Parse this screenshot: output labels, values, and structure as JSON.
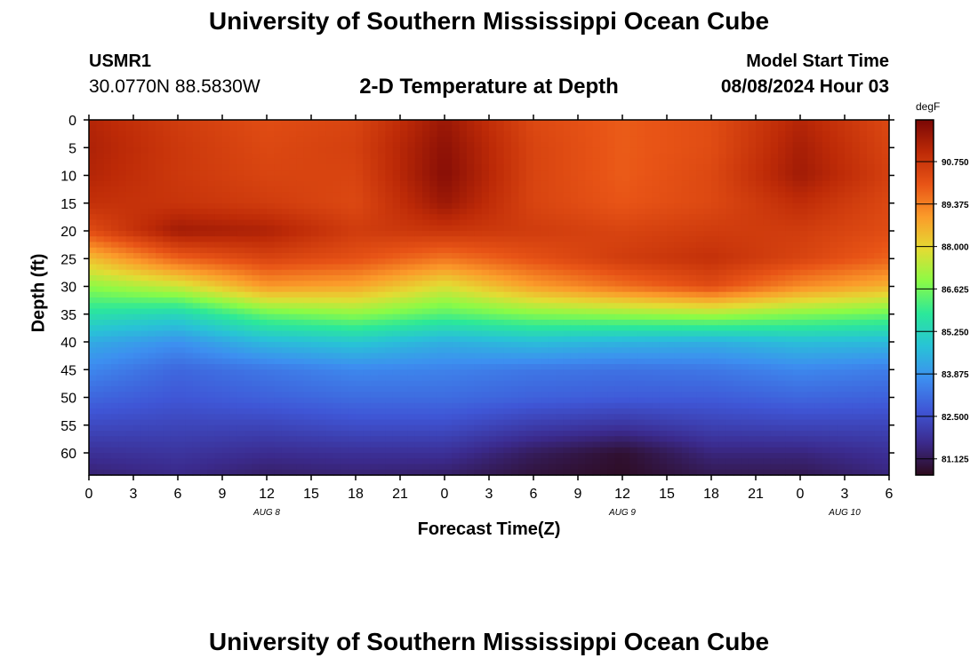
{
  "header": {
    "title": "University of Southern Mississippi Ocean Cube",
    "station_id": "USMR1",
    "location": "30.0770N  88.5830W",
    "subtitle": "2-D Temperature at Depth",
    "start_label": "Model Start Time",
    "start_value": "08/08/2024 Hour 03"
  },
  "footer": {
    "title": "University of Southern Mississippi Ocean Cube"
  },
  "chart_data": {
    "type": "heatmap",
    "title": "2-D Temperature at Depth",
    "xlabel": "Forecast Time(Z)",
    "ylabel": "Depth (ft)",
    "x_unit": "forecast hours from 08/08 00Z",
    "x_range": [
      0,
      54
    ],
    "x_ticks": [
      0,
      3,
      6,
      9,
      12,
      15,
      18,
      21,
      24,
      27,
      30,
      33,
      36,
      39,
      42,
      45,
      48,
      51,
      54
    ],
    "x_tick_labels": [
      "0",
      "3",
      "6",
      "9",
      "12",
      "15",
      "18",
      "21",
      "0",
      "3",
      "6",
      "9",
      "12",
      "15",
      "18",
      "21",
      "0",
      "3",
      "6"
    ],
    "date_labels": [
      {
        "hour": 12,
        "text": "AUG 8"
      },
      {
        "hour": 36,
        "text": "AUG 9"
      },
      {
        "hour": 51,
        "text": "AUG 10"
      }
    ],
    "y_range": [
      0,
      64
    ],
    "y_ticks": [
      0,
      5,
      10,
      15,
      20,
      25,
      30,
      35,
      40,
      45,
      50,
      55,
      60
    ],
    "y_tick_labels": [
      "0",
      "5",
      "10",
      "15",
      "20",
      "25",
      "30",
      "35",
      "40",
      "45",
      "50",
      "55",
      "60"
    ],
    "colorbar": {
      "unit": "degF",
      "range": [
        80.6,
        92.1
      ],
      "ticks": [
        81.125,
        82.5,
        83.875,
        85.25,
        86.625,
        88.0,
        89.375,
        90.75
      ],
      "tick_labels": [
        "81.125",
        "82.500",
        "83.875",
        "85.250",
        "86.625",
        "88.000",
        "89.375",
        "90.750"
      ]
    },
    "grid_x": [
      0,
      6,
      12,
      18,
      24,
      30,
      36,
      42,
      48,
      54
    ],
    "grid_y": [
      0,
      5,
      10,
      15,
      20,
      25,
      30,
      35,
      40,
      45,
      50,
      55,
      60,
      64
    ],
    "values": [
      [
        91.2,
        90.6,
        90.2,
        90.4,
        91.6,
        90.3,
        89.9,
        90.2,
        91.2,
        90.3
      ],
      [
        91.3,
        90.7,
        90.3,
        90.5,
        91.8,
        90.4,
        89.9,
        90.2,
        91.4,
        90.4
      ],
      [
        91.2,
        90.7,
        90.4,
        90.4,
        91.9,
        90.4,
        89.9,
        90.3,
        91.5,
        90.5
      ],
      [
        90.9,
        90.8,
        90.6,
        90.3,
        91.6,
        90.4,
        90.0,
        90.3,
        91.0,
        90.3
      ],
      [
        90.2,
        91.5,
        91.3,
        90.6,
        90.8,
        90.6,
        90.4,
        90.6,
        90.6,
        90.2
      ],
      [
        88.4,
        89.8,
        90.4,
        90.1,
        89.5,
        90.1,
        90.6,
        90.9,
        90.4,
        89.8
      ],
      [
        86.9,
        87.6,
        89.0,
        88.8,
        87.8,
        88.9,
        89.6,
        90.2,
        89.2,
        88.6
      ],
      [
        85.6,
        85.3,
        86.5,
        86.9,
        86.3,
        86.8,
        87.0,
        87.2,
        86.8,
        86.5
      ],
      [
        84.3,
        83.8,
        84.6,
        84.9,
        84.4,
        84.7,
        84.5,
        84.4,
        84.7,
        84.6
      ],
      [
        83.6,
        83.0,
        83.3,
        83.6,
        83.5,
        83.3,
        83.2,
        83.3,
        83.6,
        83.4
      ],
      [
        83.0,
        82.7,
        82.9,
        83.1,
        83.1,
        82.9,
        82.8,
        82.8,
        83.0,
        82.9
      ],
      [
        82.4,
        82.3,
        82.3,
        82.5,
        82.5,
        82.1,
        81.9,
        82.2,
        82.3,
        82.3
      ],
      [
        81.8,
        81.9,
        81.7,
        81.8,
        81.8,
        81.2,
        80.8,
        81.5,
        81.5,
        81.8
      ],
      [
        81.4,
        81.6,
        81.3,
        81.4,
        81.3,
        80.9,
        80.7,
        81.1,
        81.1,
        81.5
      ]
    ]
  },
  "colors": {
    "palette": [
      "#2d0a1b",
      "#3b2a8c",
      "#3f56d6",
      "#3d8ff0",
      "#28c3d6",
      "#2be89a",
      "#8bfb46",
      "#e4db33",
      "#fb9b2a",
      "#e85416",
      "#bd2a07",
      "#7a0705"
    ],
    "background": "#ffffff",
    "axis": "#000000"
  }
}
